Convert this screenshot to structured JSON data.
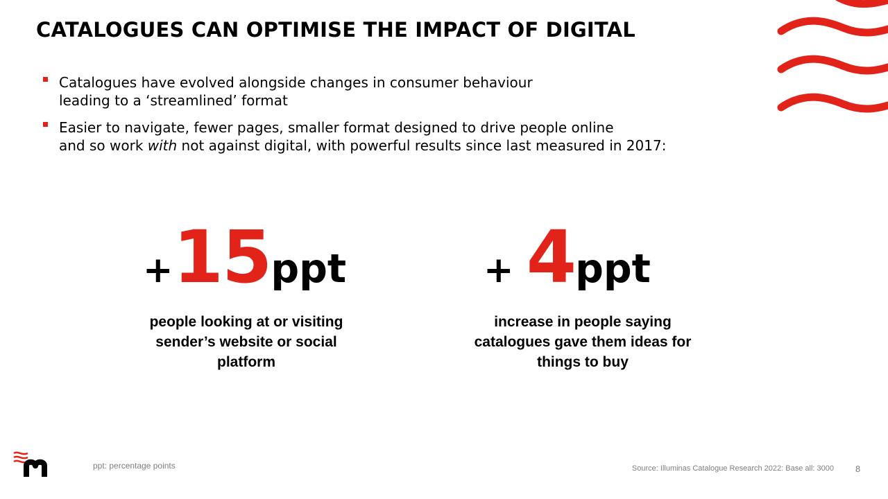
{
  "slide": {
    "title": "CATALOGUES CAN OPTIMISE THE IMPACT OF DIGITAL",
    "accent_color": "#e2231a"
  },
  "bullets": [
    {
      "line1": "Catalogues have evolved alongside changes in consumer behaviour",
      "line2": "leading to a ‘streamlined’ format"
    },
    {
      "line1": "Easier to navigate, fewer pages, smaller format designed to drive people online",
      "line2_pre": "and so work ",
      "line2_em": "with",
      "line2_post": " not against digital, with powerful results since last measured in 2017:"
    }
  ],
  "stats": [
    {
      "plus": "+",
      "number": "15",
      "unit": "ppt",
      "caption": "people looking at or visiting sender’s website or social platform"
    },
    {
      "plus": "+ ",
      "number": "4",
      "unit": "ppt",
      "caption": "increase in people saying catalogues gave them ideas for things to buy"
    }
  ],
  "footer": {
    "footnote": "ppt: percentage points",
    "source": "Source: Illuminas Catalogue Research 2022: Base all: 3000",
    "page_number": "8",
    "logo_icon": "m-logo-icon"
  }
}
